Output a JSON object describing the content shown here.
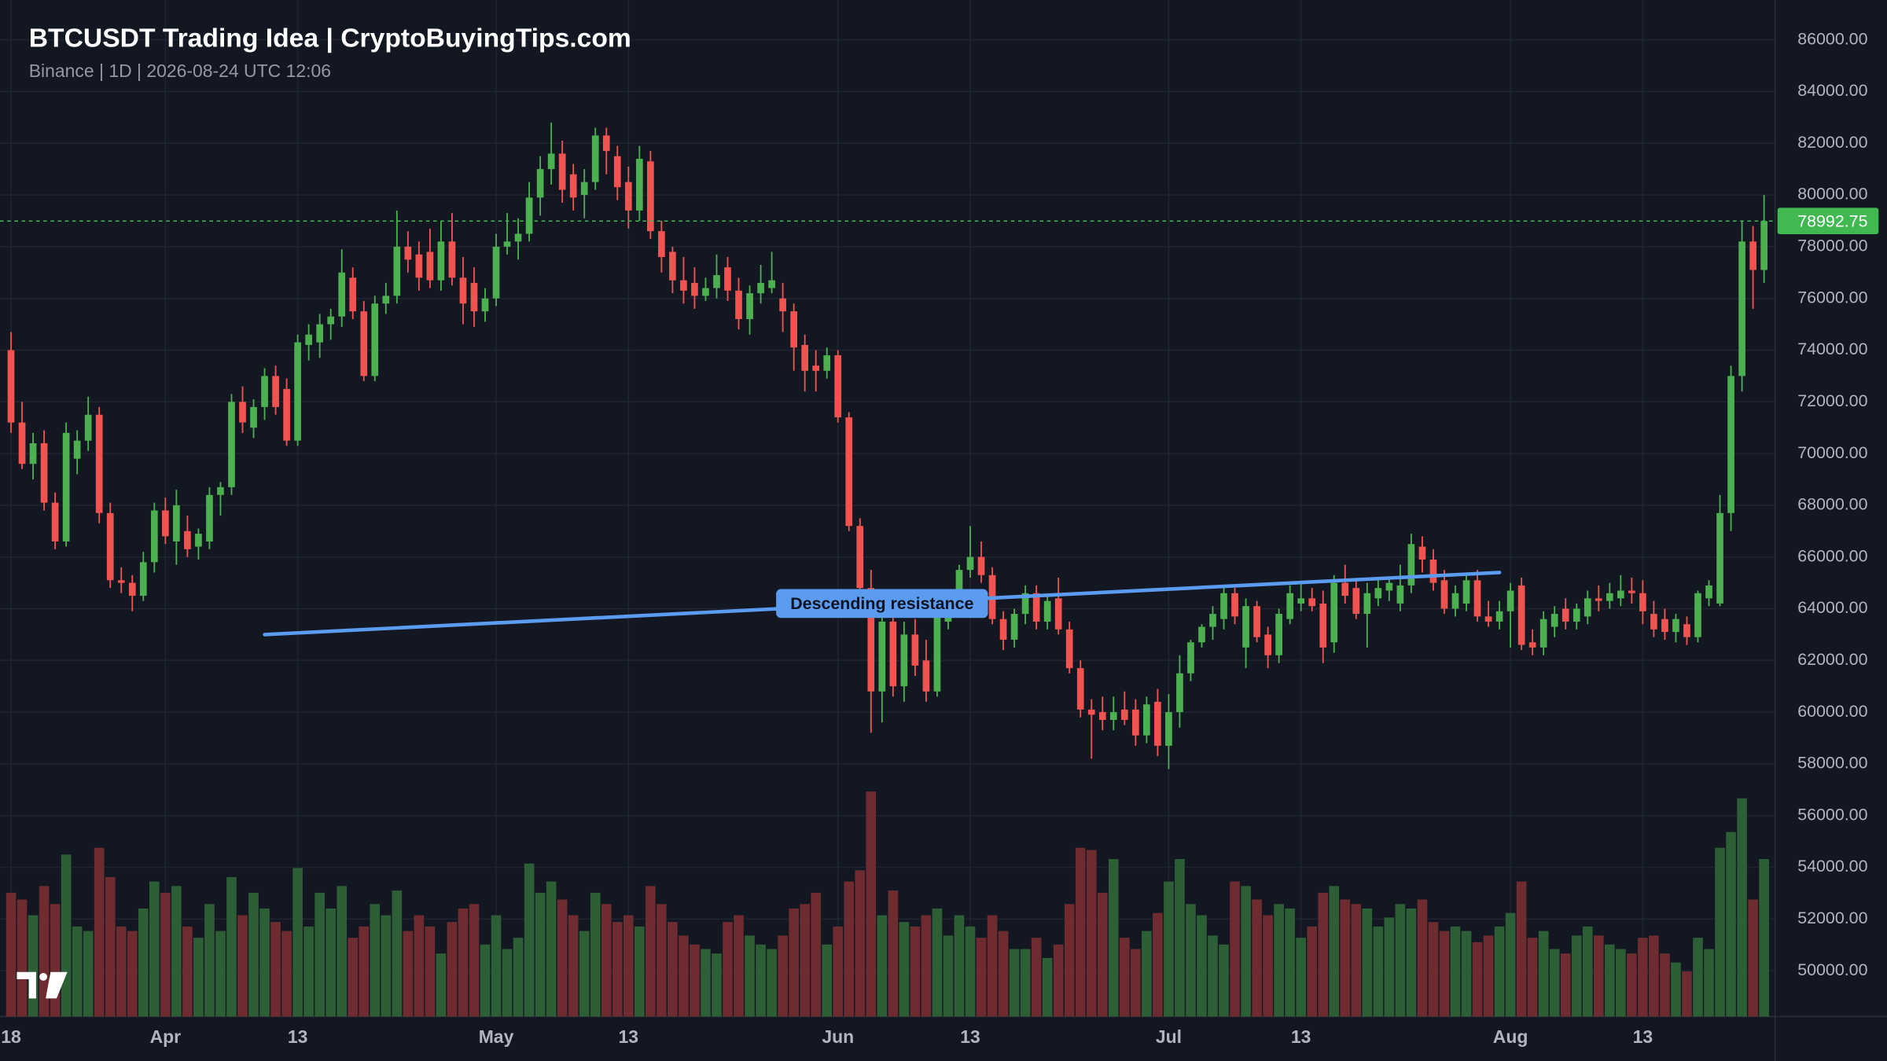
{
  "chart_data": {
    "type": "candlestick",
    "title": "BTCUSDT Trading Idea | CryptoBuyingTips.com",
    "subtitle": "Binance | 1D | 2026-08-24 UTC 12:06",
    "x": [
      "2026-03-18",
      "2026-03-19",
      "2026-03-20",
      "2026-03-21",
      "2026-03-22",
      "2026-03-23",
      "2026-03-24",
      "2026-03-25",
      "2026-03-26",
      "2026-03-27",
      "2026-03-28",
      "2026-03-29",
      "2026-03-30",
      "2026-03-31",
      "2026-04-01",
      "2026-04-02",
      "2026-04-03",
      "2026-04-04",
      "2026-04-05",
      "2026-04-06",
      "2026-04-07",
      "2026-04-08",
      "2026-04-09",
      "2026-04-10",
      "2026-04-11",
      "2026-04-12",
      "2026-04-13",
      "2026-04-14",
      "2026-04-15",
      "2026-04-16",
      "2026-04-17",
      "2026-04-18",
      "2026-04-19",
      "2026-04-20",
      "2026-04-21",
      "2026-04-22",
      "2026-04-23",
      "2026-04-24",
      "2026-04-25",
      "2026-04-26",
      "2026-04-27",
      "2026-04-28",
      "2026-04-29",
      "2026-04-30",
      "2026-05-01",
      "2026-05-02",
      "2026-05-03",
      "2026-05-04",
      "2026-05-05",
      "2026-05-06",
      "2026-05-07",
      "2026-05-08",
      "2026-05-09",
      "2026-05-10",
      "2026-05-11",
      "2026-05-12",
      "2026-05-13",
      "2026-05-14",
      "2026-05-15",
      "2026-05-16",
      "2026-05-17",
      "2026-05-18",
      "2026-05-19",
      "2026-05-20",
      "2026-05-21",
      "2026-05-22",
      "2026-05-23",
      "2026-05-24",
      "2026-05-25",
      "2026-05-26",
      "2026-05-27",
      "2026-05-28",
      "2026-05-29",
      "2026-05-30",
      "2026-05-31",
      "2026-06-01",
      "2026-06-02",
      "2026-06-03",
      "2026-06-04",
      "2026-06-05",
      "2026-06-06",
      "2026-06-07",
      "2026-06-08",
      "2026-06-09",
      "2026-06-10",
      "2026-06-11",
      "2026-06-12",
      "2026-06-13",
      "2026-06-14",
      "2026-06-15",
      "2026-06-16",
      "2026-06-17",
      "2026-06-18",
      "2026-06-19",
      "2026-06-20",
      "2026-06-21",
      "2026-06-22",
      "2026-06-23",
      "2026-06-24",
      "2026-06-25",
      "2026-06-26",
      "2026-06-27",
      "2026-06-28",
      "2026-06-29",
      "2026-06-30",
      "2026-07-01",
      "2026-07-02",
      "2026-07-03",
      "2026-07-04",
      "2026-07-05",
      "2026-07-06",
      "2026-07-07",
      "2026-07-08",
      "2026-07-09",
      "2026-07-10",
      "2026-07-11",
      "2026-07-12",
      "2026-07-13",
      "2026-07-14",
      "2026-07-15",
      "2026-07-16",
      "2026-07-17",
      "2026-07-18",
      "2026-07-19",
      "2026-07-20",
      "2026-07-21",
      "2026-07-22",
      "2026-07-23",
      "2026-07-24",
      "2026-07-25",
      "2026-07-26",
      "2026-07-27",
      "2026-07-28",
      "2026-07-29",
      "2026-07-30",
      "2026-07-31",
      "2026-08-01",
      "2026-08-02",
      "2026-08-03",
      "2026-08-04",
      "2026-08-05",
      "2026-08-06",
      "2026-08-07",
      "2026-08-08",
      "2026-08-09",
      "2026-08-10",
      "2026-08-11",
      "2026-08-12",
      "2026-08-13",
      "2026-08-14",
      "2026-08-15",
      "2026-08-16",
      "2026-08-17",
      "2026-08-18",
      "2026-08-19",
      "2026-08-20",
      "2026-08-21",
      "2026-08-22",
      "2026-08-23",
      "2026-08-24"
    ],
    "open": [
      74000,
      71200,
      69600,
      70400,
      68100,
      66600,
      69800,
      70500,
      71500,
      67700,
      65100,
      65000,
      64500,
      65800,
      67800,
      66600,
      67000,
      66400,
      66600,
      68400,
      68700,
      72000,
      71000,
      71800,
      73000,
      72500,
      70500,
      74200,
      74300,
      75000,
      75300,
      76800,
      75500,
      73000,
      75800,
      76100,
      78000,
      77700,
      77800,
      76700,
      78200,
      76800,
      76600,
      75500,
      76000,
      78000,
      78200,
      78500,
      79900,
      81000,
      81600,
      80800,
      80000,
      80500,
      82300,
      81500,
      80500,
      79400,
      81300,
      78600,
      77800,
      76700,
      76600,
      76100,
      76400,
      77200,
      76300,
      75200,
      76200,
      76400,
      76000,
      75500,
      74200,
      73400,
      73200,
      73800,
      71400,
      67200,
      64800,
      60800,
      63500,
      61000,
      63000,
      62000,
      60800,
      63500,
      64000,
      65500,
      66000,
      65300,
      63600,
      62800,
      63800,
      64600,
      63500,
      64400,
      63200,
      61700,
      60100,
      60000,
      59700,
      60100,
      60100,
      59100,
      60400,
      58700,
      60000,
      61500,
      62700,
      63300,
      63600,
      64600,
      62500,
      64100,
      63000,
      62200,
      63600,
      64200,
      64400,
      64200,
      62700,
      65000,
      64800,
      63800,
      64400,
      64700,
      64200,
      64900,
      66400,
      65900,
      65100,
      64000,
      64200,
      65100,
      63700,
      63500,
      63900,
      64900,
      62700,
      62500,
      63300,
      64000,
      63500,
      63700,
      64400,
      64300,
      64400,
      64700,
      64600,
      63800,
      63600,
      63100,
      63400,
      62900,
      64400,
      64200,
      67700,
      73000,
      78200,
      77100
    ],
    "high": [
      74700,
      72000,
      70800,
      70900,
      68500,
      71200,
      70900,
      72200,
      71800,
      68100,
      65600,
      65300,
      66200,
      68100,
      68300,
      68600,
      67600,
      67100,
      68700,
      68900,
      72300,
      72600,
      72100,
      73300,
      73400,
      72900,
      74600,
      75000,
      75400,
      75600,
      77900,
      77200,
      75900,
      76100,
      76600,
      79400,
      78600,
      78200,
      78700,
      79000,
      79300,
      77600,
      77200,
      76400,
      78500,
      79300,
      79100,
      80500,
      81500,
      82800,
      82100,
      81200,
      81000,
      82600,
      82600,
      81900,
      81100,
      81900,
      81700,
      79000,
      78000,
      77600,
      77200,
      76800,
      77700,
      77600,
      76800,
      76500,
      77300,
      77800,
      76600,
      75800,
      74600,
      74000,
      74100,
      74000,
      71600,
      67500,
      65500,
      64000,
      64200,
      63500,
      63600,
      62800,
      64400,
      64500,
      65700,
      67200,
      66600,
      65600,
      63900,
      64000,
      64900,
      64900,
      64500,
      65200,
      63500,
      62000,
      60500,
      60600,
      60600,
      60800,
      60500,
      60600,
      60900,
      60700,
      62200,
      62800,
      63400,
      64100,
      64900,
      64800,
      64400,
      64300,
      63300,
      64000,
      64900,
      65000,
      64800,
      64700,
      65300,
      65700,
      65100,
      65000,
      65200,
      65200,
      65700,
      66900,
      66800,
      66300,
      65500,
      64900,
      65400,
      65500,
      64300,
      64300,
      65000,
      65200,
      63200,
      63900,
      64100,
      64400,
      64200,
      64700,
      64900,
      65000,
      65300,
      65200,
      65100,
      64300,
      64000,
      63800,
      63700,
      64700,
      65100,
      68400,
      73400,
      79000,
      78800,
      80000
    ],
    "low": [
      70800,
      69400,
      69000,
      67800,
      66300,
      66400,
      69200,
      70100,
      67300,
      64800,
      64600,
      63900,
      64300,
      65400,
      66500,
      65700,
      66000,
      65900,
      66300,
      67600,
      68400,
      70800,
      70600,
      71300,
      71500,
      70300,
      70300,
      73600,
      73700,
      74400,
      74900,
      75200,
      72800,
      72800,
      75400,
      75800,
      77000,
      76300,
      76400,
      76300,
      76500,
      75000,
      74900,
      75100,
      75700,
      77700,
      77500,
      78200,
      79200,
      80400,
      79700,
      79400,
      79100,
      80200,
      80800,
      79800,
      78700,
      79000,
      78300,
      77000,
      76200,
      75800,
      75600,
      75900,
      76000,
      75900,
      74800,
      74600,
      75800,
      76200,
      74700,
      73200,
      72400,
      72400,
      72900,
      71200,
      67000,
      64600,
      59200,
      59600,
      60600,
      60400,
      61400,
      60400,
      60600,
      63200,
      63700,
      65200,
      65000,
      63400,
      62400,
      62500,
      63400,
      63200,
      63200,
      63000,
      61500,
      59800,
      58200,
      59300,
      59300,
      59500,
      58700,
      58800,
      58300,
      57800,
      59400,
      61200,
      62500,
      62800,
      63200,
      63400,
      61700,
      62700,
      61700,
      61900,
      63400,
      63900,
      63900,
      61900,
      62300,
      64200,
      63600,
      62500,
      64100,
      64300,
      63900,
      64600,
      65400,
      64700,
      63800,
      63700,
      63900,
      63500,
      63300,
      63200,
      62500,
      62400,
      62200,
      62200,
      62900,
      63200,
      63200,
      63400,
      63900,
      64000,
      64100,
      64200,
      63400,
      62900,
      62800,
      62700,
      62600,
      62700,
      64100,
      64100,
      67000,
      72400,
      75600,
      76600
    ],
    "close": [
      71200,
      69600,
      70400,
      68100,
      66600,
      70800,
      70500,
      71500,
      67700,
      65100,
      65000,
      64500,
      65800,
      67800,
      66800,
      68000,
      66300,
      66900,
      68400,
      68700,
      72000,
      71200,
      71800,
      73000,
      71800,
      70500,
      74300,
      74600,
      75000,
      75300,
      77000,
      75500,
      73000,
      75800,
      76100,
      78000,
      77500,
      76800,
      76700,
      78200,
      76800,
      75800,
      75500,
      76000,
      78000,
      78200,
      78500,
      79900,
      81000,
      81600,
      80200,
      79900,
      80500,
      82300,
      81700,
      80300,
      79400,
      81400,
      78600,
      77600,
      76700,
      76300,
      76100,
      76400,
      76900,
      76300,
      75200,
      76200,
      76600,
      76700,
      75500,
      74100,
      73200,
      73200,
      73800,
      71400,
      67200,
      64800,
      60800,
      63500,
      61000,
      63000,
      61800,
      60800,
      64200,
      64300,
      65500,
      66000,
      65300,
      63600,
      62800,
      63800,
      64600,
      63500,
      64300,
      63200,
      61700,
      60100,
      59900,
      59700,
      60000,
      59700,
      59100,
      60300,
      58700,
      60000,
      61500,
      62700,
      63300,
      63800,
      64600,
      63700,
      64100,
      62900,
      62200,
      63800,
      64600,
      64400,
      64100,
      62500,
      65000,
      64500,
      63800,
      64600,
      64800,
      65000,
      64900,
      66500,
      65900,
      65000,
      64000,
      64600,
      65100,
      63700,
      63500,
      63900,
      64700,
      62600,
      62500,
      63600,
      63800,
      63500,
      64000,
      64400,
      64300,
      64600,
      64700,
      64600,
      63900,
      63200,
      63100,
      63600,
      62900,
      64600,
      64900,
      67700,
      73000,
      78200,
      77100,
      78992.75
    ],
    "volume": [
      55,
      52,
      45,
      58,
      50,
      72,
      40,
      38,
      75,
      62,
      40,
      38,
      48,
      60,
      55,
      58,
      40,
      35,
      50,
      38,
      62,
      45,
      55,
      48,
      42,
      38,
      66,
      40,
      55,
      48,
      58,
      35,
      40,
      50,
      45,
      56,
      38,
      45,
      40,
      28,
      42,
      48,
      50,
      32,
      45,
      30,
      35,
      68,
      55,
      60,
      52,
      45,
      38,
      55,
      50,
      42,
      45,
      40,
      58,
      50,
      42,
      36,
      32,
      30,
      28,
      42,
      45,
      36,
      32,
      30,
      36,
      48,
      50,
      55,
      32,
      40,
      60,
      65,
      100,
      45,
      56,
      42,
      40,
      45,
      48,
      36,
      45,
      40,
      35,
      45,
      38,
      30,
      30,
      35,
      26,
      32,
      50,
      75,
      74,
      55,
      70,
      35,
      30,
      38,
      46,
      60,
      70,
      50,
      45,
      36,
      32,
      60,
      58,
      52,
      45,
      50,
      48,
      35,
      40,
      55,
      58,
      52,
      50,
      48,
      40,
      44,
      50,
      48,
      52,
      42,
      38,
      40,
      38,
      33,
      36,
      40,
      46,
      60,
      35,
      38,
      30,
      28,
      36,
      40,
      36,
      32,
      30,
      28,
      35,
      36,
      28,
      24,
      20,
      35,
      30,
      75,
      82,
      97,
      52,
      70
    ],
    "up_color": "#4caf50",
    "down_color": "#f05350",
    "volume_up_color": "#2c5f35",
    "volume_down_color": "#6e2c30",
    "last_price": 78992.75,
    "last_price_color": "#3fb950",
    "xlim": [
      "2026-03-17",
      "2026-08-25"
    ],
    "xticks": [
      {
        "value": "2026-03-18",
        "label": "18"
      },
      {
        "value": "2026-04-01",
        "label": "Apr"
      },
      {
        "value": "2026-04-13",
        "label": "13"
      },
      {
        "value": "2026-05-01",
        "label": "May"
      },
      {
        "value": "2026-05-13",
        "label": "13"
      },
      {
        "value": "2026-06-01",
        "label": "Jun"
      },
      {
        "value": "2026-06-13",
        "label": "13"
      },
      {
        "value": "2026-07-01",
        "label": "Jul"
      },
      {
        "value": "2026-07-13",
        "label": "13"
      },
      {
        "value": "2026-08-01",
        "label": "Aug"
      },
      {
        "value": "2026-08-13",
        "label": "13"
      }
    ],
    "ylim": [
      48230,
      87540
    ],
    "yticks": [
      {
        "value": 50000,
        "label": "50000.00"
      },
      {
        "value": 52000,
        "label": "52000.00"
      },
      {
        "value": 54000,
        "label": "54000.00"
      },
      {
        "value": 56000,
        "label": "56000.00"
      },
      {
        "value": 58000,
        "label": "58000.00"
      },
      {
        "value": 60000,
        "label": "60000.00"
      },
      {
        "value": 62000,
        "label": "62000.00"
      },
      {
        "value": 64000,
        "label": "64000.00"
      },
      {
        "value": 66000,
        "label": "66000.00"
      },
      {
        "value": 68000,
        "label": "68000.00"
      },
      {
        "value": 70000,
        "label": "70000.00"
      },
      {
        "value": 72000,
        "label": "72000.00"
      },
      {
        "value": 74000,
        "label": "74000.00"
      },
      {
        "value": 76000,
        "label": "76000.00"
      },
      {
        "value": 78000,
        "label": "78000.00"
      },
      {
        "value": 80000,
        "label": "80000.00"
      },
      {
        "value": 82000,
        "label": "82000.00"
      },
      {
        "value": 84000,
        "label": "84000.00"
      },
      {
        "value": 86000,
        "label": "86000.00"
      }
    ],
    "grid": true,
    "trendline": {
      "label": "Descending resistance",
      "x": [
        "2026-04-10",
        "2026-07-31"
      ],
      "y": [
        63000,
        65400
      ],
      "color": "#5b9cf0"
    }
  }
}
